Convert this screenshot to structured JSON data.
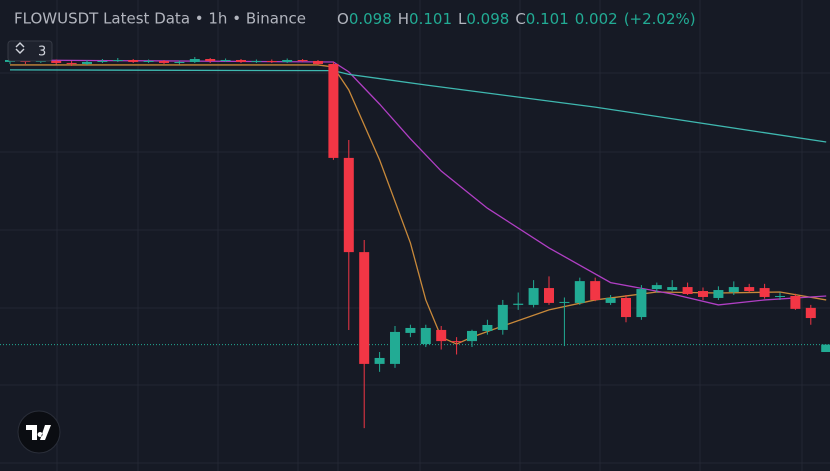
{
  "header": {
    "title": "FLOWUSDT Latest Data • 1h • Binance",
    "ohlc": [
      {
        "label": "O",
        "value": 0.098
      },
      {
        "label": "H",
        "value": 0.101
      },
      {
        "label": "L",
        "value": 0.098
      },
      {
        "label": "C",
        "value": 0.101
      }
    ],
    "change": 0.002,
    "change_pct": "(+2.02%)",
    "badge": 3
  },
  "chart_data": {
    "type": "candlestick",
    "ylim": [
      0.05,
      0.24
    ],
    "up_color": "#22ab94",
    "down_color": "#f23645",
    "open": [
      0.215,
      0.2158,
      0.215,
      0.2154,
      0.2146,
      0.2142,
      0.215,
      0.2154,
      0.2158,
      0.215,
      0.2154,
      0.2146,
      0.215,
      0.2162,
      0.2154,
      0.2158,
      0.215,
      0.2154,
      0.215,
      0.2158,
      0.2154,
      0.2142,
      0.1763,
      0.1383,
      0.0932,
      0.0932,
      0.1057,
      0.1012,
      0.1069,
      0.1024,
      0.1024,
      0.1065,
      0.1069,
      0.117,
      0.117,
      0.1238,
      0.1178,
      0.1178,
      0.1266,
      0.1178,
      0.1198,
      0.1121,
      0.1234,
      0.123,
      0.1242,
      0.1226,
      0.1198,
      0.1222,
      0.1242,
      0.1238,
      0.1202,
      0.1206,
      0.1158,
      0.098
    ],
    "high": [
      0.217,
      0.2166,
      0.2162,
      0.216,
      0.2154,
      0.2158,
      0.2162,
      0.2166,
      0.2162,
      0.216,
      0.2158,
      0.2156,
      0.217,
      0.2166,
      0.2164,
      0.2162,
      0.216,
      0.216,
      0.2164,
      0.2162,
      0.2158,
      0.215,
      0.1835,
      0.1432,
      0.098,
      0.1085,
      0.109,
      0.109,
      0.1085,
      0.104,
      0.107,
      0.111,
      0.119,
      0.122,
      0.127,
      0.1285,
      0.12,
      0.128,
      0.128,
      0.121,
      0.121,
      0.125,
      0.126,
      0.127,
      0.126,
      0.124,
      0.1245,
      0.1265,
      0.1255,
      0.1255,
      0.122,
      0.1215,
      0.117,
      0.101
    ],
    "low": [
      0.2142,
      0.2142,
      0.2146,
      0.214,
      0.2134,
      0.2138,
      0.2146,
      0.215,
      0.2146,
      0.2146,
      0.2142,
      0.214,
      0.2146,
      0.2146,
      0.215,
      0.2146,
      0.2146,
      0.2146,
      0.2146,
      0.215,
      0.2138,
      0.1755,
      0.1069,
      0.0673,
      0.09,
      0.0916,
      0.104,
      0.1,
      0.099,
      0.097,
      0.1,
      0.105,
      0.105,
      0.115,
      0.116,
      0.117,
      0.1004,
      0.117,
      0.1185,
      0.117,
      0.11,
      0.111,
      0.122,
      0.1225,
      0.121,
      0.119,
      0.119,
      0.121,
      0.122,
      0.1195,
      0.119,
      0.115,
      0.109,
      0.098
    ],
    "close": [
      0.2158,
      0.215,
      0.2154,
      0.2146,
      0.2142,
      0.215,
      0.2154,
      0.2158,
      0.215,
      0.2154,
      0.2146,
      0.215,
      0.2162,
      0.2154,
      0.2158,
      0.215,
      0.2154,
      0.215,
      0.2158,
      0.2154,
      0.2142,
      0.1763,
      0.1383,
      0.0932,
      0.0956,
      0.1061,
      0.1077,
      0.1077,
      0.1024,
      0.102,
      0.1065,
      0.1089,
      0.117,
      0.1175,
      0.1238,
      0.1178,
      0.1182,
      0.1266,
      0.119,
      0.1198,
      0.1121,
      0.1234,
      0.125,
      0.1242,
      0.1214,
      0.1202,
      0.123,
      0.1242,
      0.1226,
      0.1202,
      0.1206,
      0.1154,
      0.1117,
      0.101
    ],
    "lines": [
      {
        "color": "#c8893a",
        "x": [
          0,
          20,
          21,
          22,
          24,
          26,
          27,
          28,
          29,
          30,
          32,
          35,
          38,
          42,
          46,
          50,
          53
        ],
        "values": [
          0.2138,
          0.2138,
          0.213,
          0.2037,
          0.1755,
          0.142,
          0.119,
          0.104,
          0.1012,
          0.104,
          0.1085,
          0.115,
          0.119,
          0.1222,
          0.1218,
          0.1222,
          0.119
        ]
      },
      {
        "color": "#b03fc4",
        "x": [
          0,
          21,
          22,
          24,
          26,
          28,
          31,
          35,
          39,
          43,
          46,
          49,
          53
        ],
        "values": [
          0.2158,
          0.215,
          0.211,
          0.198,
          0.184,
          0.171,
          0.156,
          0.14,
          0.126,
          0.1214,
          0.117,
          0.119,
          0.1206
        ]
      },
      {
        "color": "#3fb8b0",
        "x": [
          0,
          21,
          22,
          27,
          38,
          53
        ],
        "values": [
          0.2118,
          0.2115,
          0.21,
          0.2057,
          0.1968,
          0.1827
        ]
      }
    ]
  }
}
